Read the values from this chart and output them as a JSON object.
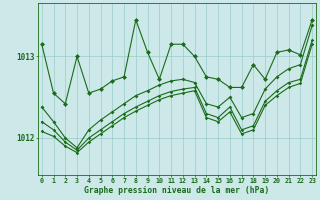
{
  "xlabel": "Graphe pression niveau de la mer (hPa)",
  "background_color": "#cce8e8",
  "line_color": "#1a6b1a",
  "grid_color": "#99cccc",
  "x_ticks": [
    0,
    1,
    2,
    3,
    4,
    5,
    6,
    7,
    8,
    9,
    10,
    11,
    12,
    13,
    14,
    15,
    16,
    17,
    18,
    19,
    20,
    21,
    22,
    23
  ],
  "y_ticks": [
    1012,
    1013
  ],
  "ylim": [
    1011.55,
    1013.65
  ],
  "xlim": [
    -0.3,
    23.3
  ],
  "series1": [
    1013.15,
    1012.55,
    1012.42,
    1013.0,
    1012.55,
    1012.6,
    1012.7,
    1012.75,
    1013.45,
    1013.05,
    1012.72,
    1013.15,
    1013.15,
    1013.0,
    1012.75,
    1012.72,
    1012.62,
    1012.62,
    1012.9,
    1012.72,
    1013.05,
    1013.08,
    1013.02,
    1013.45
  ],
  "series2": [
    1012.38,
    1012.2,
    1012.0,
    1011.88,
    1012.1,
    1012.22,
    1012.32,
    1012.42,
    1012.52,
    1012.58,
    1012.65,
    1012.7,
    1012.72,
    1012.68,
    1012.42,
    1012.38,
    1012.5,
    1012.25,
    1012.3,
    1012.6,
    1012.75,
    1012.85,
    1012.9,
    1013.38
  ],
  "series3": [
    1012.2,
    1012.1,
    1011.95,
    1011.85,
    1012.0,
    1012.1,
    1012.2,
    1012.3,
    1012.38,
    1012.45,
    1012.52,
    1012.57,
    1012.6,
    1012.62,
    1012.3,
    1012.25,
    1012.38,
    1012.1,
    1012.15,
    1012.45,
    1012.58,
    1012.68,
    1012.72,
    1013.2
  ],
  "series4": [
    1012.08,
    1012.02,
    1011.9,
    1011.82,
    1011.95,
    1012.05,
    1012.15,
    1012.25,
    1012.33,
    1012.4,
    1012.47,
    1012.52,
    1012.55,
    1012.58,
    1012.25,
    1012.2,
    1012.32,
    1012.05,
    1012.1,
    1012.4,
    1012.52,
    1012.62,
    1012.67,
    1013.15
  ]
}
